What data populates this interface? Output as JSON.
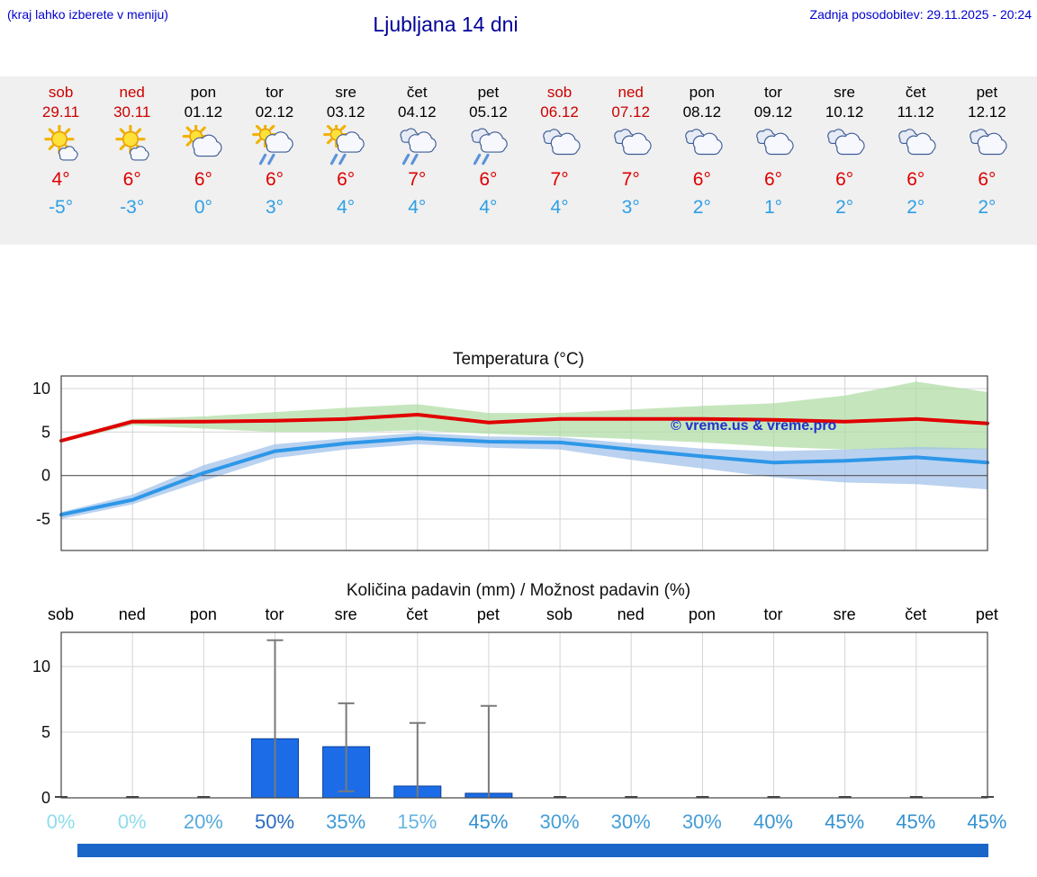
{
  "header": {
    "hint": "(kraj lahko izberete v meniju)",
    "title": "Ljubljana 14 dni",
    "updated": "Zadnja posodobitev: 29.11.2025 - 20:24"
  },
  "colors": {
    "weekend": "#cc0000",
    "weekday": "#000000",
    "high": "#dd0000",
    "low": "#2e9fe6",
    "footer": "#1a66c8"
  },
  "forecast_days": [
    {
      "name": "sob",
      "date": "29.11",
      "weekend": true,
      "icon": "sun-cloud",
      "high": "4°",
      "low": "-5°"
    },
    {
      "name": "ned",
      "date": "30.11",
      "weekend": true,
      "icon": "sun-cloud",
      "high": "6°",
      "low": "-3°"
    },
    {
      "name": "pon",
      "date": "01.12",
      "weekend": false,
      "icon": "cloud-sun",
      "high": "6°",
      "low": "0°"
    },
    {
      "name": "tor",
      "date": "02.12",
      "weekend": false,
      "icon": "sun-cloud-rain",
      "high": "6°",
      "low": "3°"
    },
    {
      "name": "sre",
      "date": "03.12",
      "weekend": false,
      "icon": "sun-cloud-rain",
      "high": "6°",
      "low": "4°"
    },
    {
      "name": "čet",
      "date": "04.12",
      "weekend": false,
      "icon": "cloud-rain",
      "high": "7°",
      "low": "4°"
    },
    {
      "name": "pet",
      "date": "05.12",
      "weekend": false,
      "icon": "cloud-rain",
      "high": "6°",
      "low": "4°"
    },
    {
      "name": "sob",
      "date": "06.12",
      "weekend": true,
      "icon": "cloudy",
      "high": "7°",
      "low": "4°"
    },
    {
      "name": "ned",
      "date": "07.12",
      "weekend": true,
      "icon": "cloudy",
      "high": "7°",
      "low": "3°"
    },
    {
      "name": "pon",
      "date": "08.12",
      "weekend": false,
      "icon": "cloudy",
      "high": "6°",
      "low": "2°"
    },
    {
      "name": "tor",
      "date": "09.12",
      "weekend": false,
      "icon": "cloudy",
      "high": "6°",
      "low": "1°"
    },
    {
      "name": "sre",
      "date": "10.12",
      "weekend": false,
      "icon": "cloudy",
      "high": "6°",
      "low": "2°"
    },
    {
      "name": "čet",
      "date": "11.12",
      "weekend": false,
      "icon": "cloudy",
      "high": "6°",
      "low": "2°"
    },
    {
      "name": "pet",
      "date": "12.12",
      "weekend": false,
      "icon": "cloudy",
      "high": "6°",
      "low": "2°"
    }
  ],
  "chart_data": [
    {
      "type": "line",
      "title": "Temperatura (°C)",
      "categories": [
        "sob",
        "ned",
        "pon",
        "tor",
        "sre",
        "čet",
        "pet",
        "sob",
        "ned",
        "pon",
        "tor",
        "sre",
        "čet",
        "pet"
      ],
      "yticks": [
        10,
        5,
        0,
        -5
      ],
      "ylim": [
        -8.5,
        11.5
      ],
      "grid": true,
      "legend": "none",
      "watermark": "© vreme.us & vreme.pro",
      "watermark_color": "#2233cc",
      "series": [
        {
          "name": "max-temp",
          "color": "#e10000",
          "values": [
            4.0,
            6.2,
            6.2,
            6.3,
            6.5,
            7.0,
            6.1,
            6.5,
            6.5,
            6.5,
            6.4,
            6.2,
            6.5,
            6.0
          ]
        },
        {
          "name": "min-temp",
          "color": "#2e97e8",
          "values": [
            -4.5,
            -2.8,
            0.3,
            2.8,
            3.7,
            4.3,
            3.9,
            3.8,
            3.0,
            2.2,
            1.5,
            1.7,
            2.1,
            1.5
          ]
        }
      ],
      "bands": [
        {
          "name": "max-range",
          "color": "#afdca4",
          "upper": [
            4.2,
            6.5,
            6.8,
            7.3,
            7.8,
            8.2,
            7.2,
            7.2,
            7.6,
            8.0,
            8.3,
            9.2,
            10.8,
            9.6
          ],
          "lower": [
            3.8,
            5.8,
            5.4,
            5.0,
            5.0,
            5.2,
            4.8,
            4.5,
            4.2,
            3.8,
            3.3,
            3.0,
            3.0,
            3.0
          ]
        },
        {
          "name": "min-range",
          "color": "#a0c0ea",
          "upper": [
            -4.2,
            -2.2,
            1.2,
            3.6,
            4.3,
            4.9,
            4.5,
            4.4,
            3.7,
            3.1,
            2.8,
            3.0,
            3.3,
            3.1
          ],
          "lower": [
            -5.0,
            -3.3,
            -0.6,
            2.0,
            3.0,
            3.6,
            3.2,
            3.0,
            1.8,
            0.8,
            -0.2,
            -0.8,
            -1.0,
            -1.6
          ]
        }
      ]
    },
    {
      "type": "bar",
      "title": "Količina padavin (mm) / Možnost padavin (%)",
      "categories": [
        "sob",
        "ned",
        "pon",
        "tor",
        "sre",
        "čet",
        "pet",
        "sob",
        "ned",
        "pon",
        "tor",
        "sre",
        "čet",
        "pet"
      ],
      "yticks": [
        0,
        5,
        10
      ],
      "ylim": [
        0,
        12.6
      ],
      "bar_color": "#1b6ce6",
      "bar_edge": "#0e3f9a",
      "values": [
        0,
        0,
        0,
        4.5,
        3.9,
        0.9,
        0.35,
        0,
        0,
        0,
        0,
        0,
        0,
        0
      ],
      "whiskers": [
        null,
        null,
        null,
        {
          "lo": 0,
          "hi": 12.0
        },
        {
          "lo": 0.5,
          "hi": 7.2
        },
        {
          "lo": 0,
          "hi": 5.7
        },
        {
          "lo": 0,
          "hi": 7.0
        },
        null,
        null,
        null,
        null,
        null,
        null,
        null
      ],
      "pop": [
        {
          "text": "0%",
          "color": "#8fdcec"
        },
        {
          "text": "0%",
          "color": "#8fdcec"
        },
        {
          "text": "20%",
          "color": "#54aadc"
        },
        {
          "text": "50%",
          "color": "#2a6cc0"
        },
        {
          "text": "35%",
          "color": "#3f9ad4"
        },
        {
          "text": "15%",
          "color": "#66b4e0"
        },
        {
          "text": "45%",
          "color": "#3492d0"
        },
        {
          "text": "30%",
          "color": "#459ed8"
        },
        {
          "text": "30%",
          "color": "#459ed8"
        },
        {
          "text": "30%",
          "color": "#459ed8"
        },
        {
          "text": "40%",
          "color": "#3a96d2"
        },
        {
          "text": "45%",
          "color": "#3492d0"
        },
        {
          "text": "45%",
          "color": "#3492d0"
        },
        {
          "text": "45%",
          "color": "#3492d0"
        }
      ]
    }
  ]
}
